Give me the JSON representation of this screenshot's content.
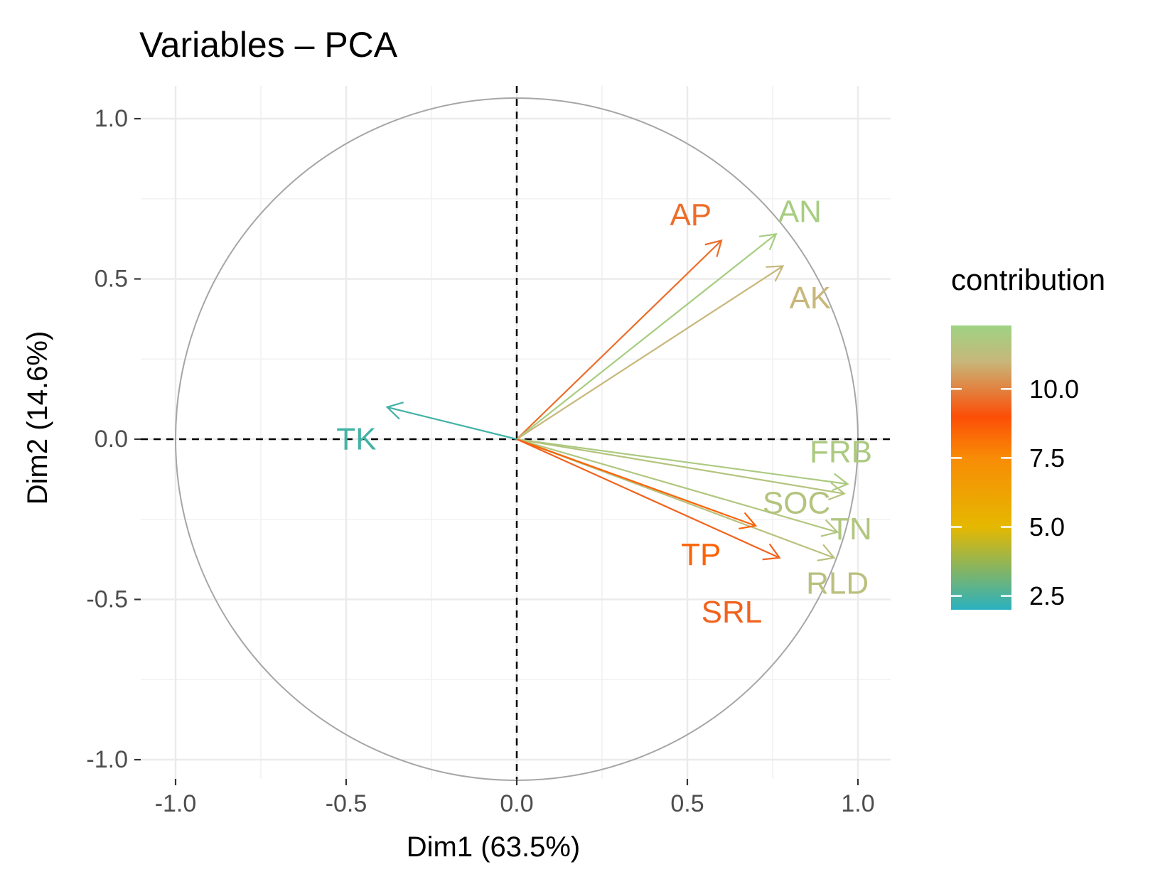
{
  "chart_data": {
    "type": "pca-variable-correlation-circle",
    "title": "Variables – PCA",
    "xlabel": "Dim1 (63.5%)",
    "ylabel": "Dim2 (14.6%)",
    "xlim": [
      -1.1,
      1.1
    ],
    "ylim": [
      -1.1,
      1.1
    ],
    "x_ticks": [
      -1.0,
      -0.5,
      0.0,
      0.5,
      1.0
    ],
    "y_ticks": [
      -1.0,
      -0.5,
      0.0,
      0.5,
      1.0
    ],
    "x_tick_labels": [
      "-1.0",
      "-0.5",
      "0.0",
      "0.5",
      "1.0"
    ],
    "y_tick_labels": [
      "-1.0",
      "-0.5",
      "0.0",
      "0.5",
      "1.0"
    ],
    "grid": true,
    "unit_circle": true,
    "reference_lines": {
      "x": 0,
      "y": 0,
      "style": "dashed"
    },
    "variables": [
      {
        "name": "AP",
        "dim1": 0.6,
        "dim2": 0.62,
        "contribution": 9.6,
        "label_xy": [
          0.51,
          0.7
        ]
      },
      {
        "name": "AN",
        "dim1": 0.76,
        "dim2": 0.64,
        "contribution": 12.0,
        "label_xy": [
          0.83,
          0.71
        ]
      },
      {
        "name": "AK",
        "dim1": 0.78,
        "dim2": 0.54,
        "contribution": 11.0,
        "label_xy": [
          0.86,
          0.44
        ]
      },
      {
        "name": "TK",
        "dim1": -0.38,
        "dim2": 0.1,
        "contribution": 2.4,
        "label_xy": [
          -0.47,
          0.0
        ]
      },
      {
        "name": "FRB",
        "dim1": 0.97,
        "dim2": -0.14,
        "contribution": 11.9,
        "label_xy": [
          0.95,
          -0.04
        ]
      },
      {
        "name": "SOC",
        "dim1": 0.96,
        "dim2": -0.17,
        "contribution": 11.6,
        "label_xy": [
          0.82,
          -0.2
        ]
      },
      {
        "name": "TN",
        "dim1": 0.94,
        "dim2": -0.29,
        "contribution": 11.7,
        "label_xy": [
          0.98,
          -0.28
        ]
      },
      {
        "name": "RLD",
        "dim1": 0.93,
        "dim2": -0.37,
        "contribution": 11.4,
        "label_xy": [
          0.94,
          -0.45
        ]
      },
      {
        "name": "TP",
        "dim1": 0.7,
        "dim2": -0.27,
        "contribution": 8.5,
        "label_xy": [
          0.54,
          -0.36
        ]
      },
      {
        "name": "SRL",
        "dim1": 0.77,
        "dim2": -0.37,
        "contribution": 9.4,
        "label_xy": [
          0.63,
          -0.54
        ]
      }
    ],
    "legend": {
      "title": "contribution",
      "placement": "right",
      "range": [
        2.0,
        12.3
      ],
      "breaks": [
        2.5,
        5.0,
        7.5,
        10.0
      ],
      "break_labels": [
        "2.5",
        "5.0",
        "7.5",
        "10.0"
      ],
      "gradient_stops": [
        {
          "value": 2.0,
          "color": "#2ab1c0"
        },
        {
          "value": 5.0,
          "color": "#e5b800"
        },
        {
          "value": 7.5,
          "color": "#f88c06"
        },
        {
          "value": 9.0,
          "color": "#fc4e07"
        },
        {
          "value": 11.0,
          "color": "#c7b77a"
        },
        {
          "value": 12.3,
          "color": "#9ed383"
        }
      ]
    }
  }
}
